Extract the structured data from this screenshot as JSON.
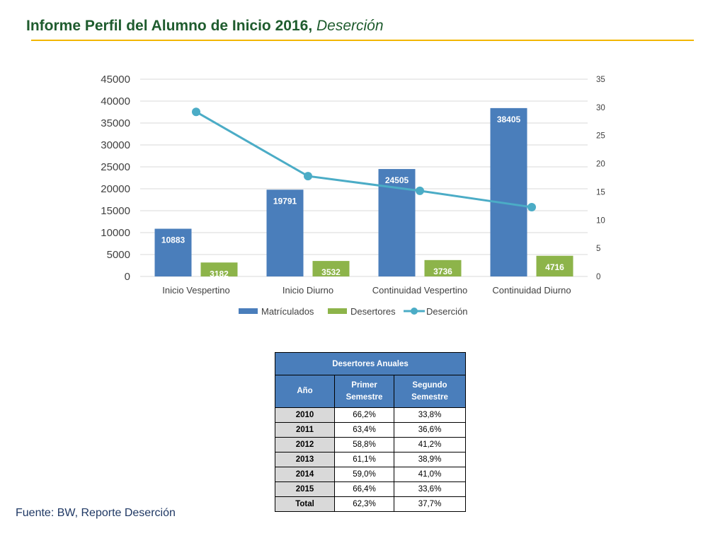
{
  "header": {
    "title": "Informe Perfil del Alumno de Inicio 2016,",
    "subtitle": "Deserción"
  },
  "colors": {
    "title": "#1f5c2e",
    "rule": "#f2b600",
    "matriculados": "#4a7ebb",
    "desertores": "#8db44a",
    "desercion": "#4bacc6",
    "table_header": "#4a7ebb",
    "table_year_cell": "#d9d9d9"
  },
  "chart_data": {
    "type": "bar",
    "categories": [
      "Inicio Vespertino",
      "Inicio Diurno",
      "Continuidad Vespertino",
      "Continuidad Diurno"
    ],
    "series": [
      {
        "name": "Matrículados",
        "type": "bar",
        "axis": "left",
        "color": "#4a7ebb",
        "values": [
          10883,
          19791,
          24505,
          38405
        ]
      },
      {
        "name": "Desertores",
        "type": "bar",
        "axis": "left",
        "color": "#8db44a",
        "values": [
          3182,
          3532,
          3736,
          4716
        ]
      },
      {
        "name": "Deserción",
        "type": "line",
        "axis": "right",
        "color": "#4bacc6",
        "values": [
          29.2,
          17.8,
          15.2,
          12.3
        ]
      }
    ],
    "left_axis": {
      "min": 0,
      "max": 45000,
      "ticks": [
        "0",
        "5000",
        "10000",
        "15000",
        "20000",
        "25000",
        "30000",
        "35000",
        "40000",
        "45000"
      ]
    },
    "right_axis": {
      "min": 0,
      "max": 35,
      "ticks": [
        "0",
        "5",
        "10",
        "15",
        "20",
        "25",
        "30",
        "35"
      ]
    },
    "grid": true,
    "legend_position": "bottom",
    "data_labels": true
  },
  "table": {
    "caption": "Desertores Anuales",
    "headers": [
      "Año",
      "Primer Semestre",
      "Segundo Semestre"
    ],
    "rows": [
      [
        "2010",
        "66,2%",
        "33,8%"
      ],
      [
        "2011",
        "63,4%",
        "36,6%"
      ],
      [
        "2012",
        "58,8%",
        "41,2%"
      ],
      [
        "2013",
        "61,1%",
        "38,9%"
      ],
      [
        "2014",
        "59,0%",
        "41,0%"
      ],
      [
        "2015",
        "66,4%",
        "33,6%"
      ],
      [
        "Total",
        "62,3%",
        "37,7%"
      ]
    ]
  },
  "footer": {
    "source": "Fuente: BW, Reporte Deserción"
  }
}
